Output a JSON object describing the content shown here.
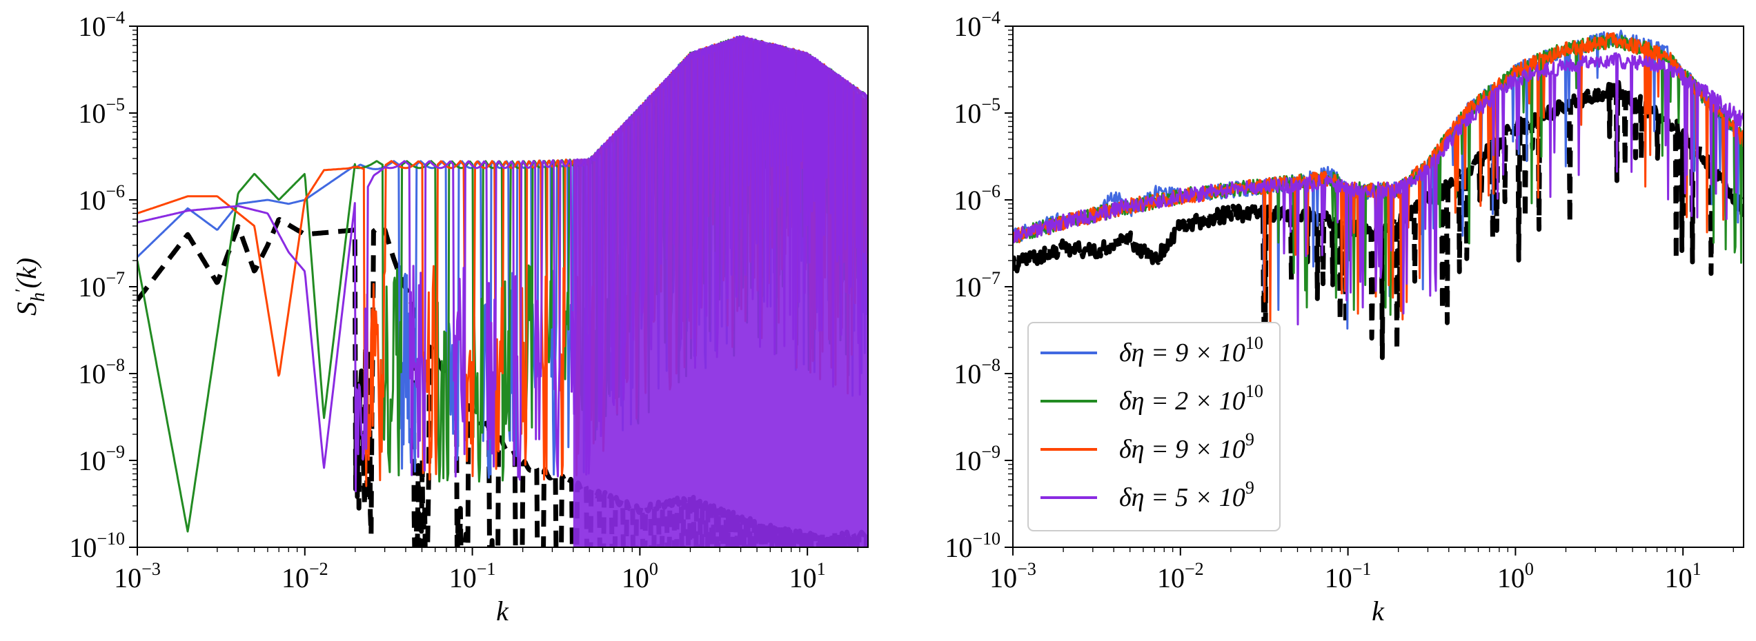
{
  "chart_data": [
    {
      "type": "line",
      "panel": "left",
      "title": "",
      "xlabel": "k",
      "ylabel": "S_h'(k)",
      "xscale": "log",
      "yscale": "log",
      "xlim": [
        0.001,
        23
      ],
      "ylim": [
        1e-10,
        0.0001
      ],
      "grid": false,
      "x_ticks": [
        {
          "value": 0.001,
          "base": "10",
          "exp": "−3"
        },
        {
          "value": 0.01,
          "base": "10",
          "exp": "−2"
        },
        {
          "value": 0.1,
          "base": "10",
          "exp": "−1"
        },
        {
          "value": 1,
          "base": "10",
          "exp": "0"
        },
        {
          "value": 10,
          "base": "10",
          "exp": "1"
        }
      ],
      "y_ticks": [
        {
          "value": 1e-10,
          "base": "10",
          "exp": "−10"
        },
        {
          "value": 1e-09,
          "base": "10",
          "exp": "−9"
        },
        {
          "value": 1e-08,
          "base": "10",
          "exp": "−8"
        },
        {
          "value": 1e-07,
          "base": "10",
          "exp": "−7"
        },
        {
          "value": 1e-06,
          "base": "10",
          "exp": "−6"
        },
        {
          "value": 1e-05,
          "base": "10",
          "exp": "−5"
        },
        {
          "value": 0.0001,
          "base": "10",
          "exp": "−4"
        }
      ],
      "series": [
        {
          "color": "#000000",
          "style": "dashed",
          "x": [
            0.001,
            0.002,
            0.003,
            0.004,
            0.005,
            0.006,
            0.007,
            0.01,
            0.02,
            0.03,
            0.05,
            0.1,
            0.2,
            0.5,
            1,
            2,
            5,
            10
          ],
          "y": [
            7e-08,
            4e-07,
            1.1e-07,
            5e-07,
            1.5e-07,
            3e-07,
            6e-07,
            4e-07,
            4.5e-07,
            5e-07,
            3e-08,
            4e-09,
            1e-09,
            5e-10,
            3e-10,
            4e-10,
            2e-10,
            1.5e-10
          ],
          "oscillation": "strong dips below 1e-9 beyond k≈0.03"
        },
        {
          "color": "#4169e1",
          "style": "solid",
          "x": [
            0.001,
            0.002,
            0.003,
            0.004,
            0.006,
            0.008,
            0.01,
            0.02,
            0.03,
            0.05,
            0.1,
            0.2,
            0.5,
            1,
            2,
            4,
            10,
            23
          ],
          "y": [
            2.2e-07,
            8e-07,
            4.5e-07,
            9e-07,
            1e-06,
            9e-07,
            1e-06,
            2.5e-06,
            2.8e-06,
            2.8e-06,
            2.8e-06,
            2.8e-06,
            3e-06,
            1.2e-05,
            5e-05,
            7.8e-05,
            5e-05,
            1.6e-05
          ],
          "oscillation": "deep dips to below 1e-10"
        },
        {
          "color": "#228b22",
          "style": "solid",
          "x": [
            0.001,
            0.002,
            0.004,
            0.005,
            0.007,
            0.01,
            0.013,
            0.02,
            0.03,
            0.05,
            0.1,
            0.2,
            0.5,
            1,
            2,
            4,
            10,
            23
          ],
          "y": [
            2e-07,
            1.5e-10,
            1.2e-06,
            2e-06,
            1e-06,
            2e-06,
            3e-09,
            2.8e-06,
            2.8e-06,
            2.8e-06,
            2.8e-06,
            2.8e-06,
            3e-06,
            1.2e-05,
            5e-05,
            7.8e-05,
            5e-05,
            1.6e-05
          ],
          "oscillation": "deep dips to below 1e-10"
        },
        {
          "color": "#ff4500",
          "style": "solid",
          "x": [
            0.001,
            0.002,
            0.003,
            0.005,
            0.007,
            0.01,
            0.013,
            0.018,
            0.03,
            0.05,
            0.1,
            0.2,
            0.5,
            1,
            2,
            4,
            10,
            23
          ],
          "y": [
            7e-07,
            1.1e-06,
            1.1e-06,
            5e-07,
            9e-09,
            1e-06,
            2.2e-06,
            2.3e-06,
            2.8e-06,
            2.8e-06,
            2.8e-06,
            2.8e-06,
            3e-06,
            1.2e-05,
            5e-05,
            7.8e-05,
            5e-05,
            1.6e-05
          ],
          "oscillation": "deep dips to below 1e-10"
        },
        {
          "color": "#8a2be2",
          "style": "solid",
          "x": [
            0.001,
            0.002,
            0.004,
            0.006,
            0.008,
            0.01,
            0.013,
            0.02,
            0.03,
            0.05,
            0.1,
            0.2,
            0.5,
            1,
            2,
            4,
            10,
            23
          ],
          "y": [
            5.5e-07,
            7.5e-07,
            8.5e-07,
            7e-07,
            2.5e-07,
            1.5e-07,
            8e-10,
            1e-06,
            2.8e-06,
            2.8e-06,
            2.8e-06,
            2.8e-06,
            3e-06,
            1.2e-05,
            5e-05,
            7.8e-05,
            5e-05,
            1.6e-05
          ],
          "oscillation": "deep dips to below 1e-10, dense fill above k≈0.3"
        }
      ]
    },
    {
      "type": "line",
      "panel": "right",
      "title": "",
      "xlabel": "k",
      "ylabel": "",
      "xscale": "log",
      "yscale": "log",
      "xlim": [
        0.001,
        23
      ],
      "ylim": [
        1e-10,
        0.0001
      ],
      "grid": false,
      "legend_placement": "lower-left",
      "x_ticks": [
        {
          "value": 0.001,
          "base": "10",
          "exp": "−3"
        },
        {
          "value": 0.01,
          "base": "10",
          "exp": "−2"
        },
        {
          "value": 0.1,
          "base": "10",
          "exp": "−1"
        },
        {
          "value": 1,
          "base": "10",
          "exp": "0"
        },
        {
          "value": 10,
          "base": "10",
          "exp": "1"
        }
      ],
      "y_ticks": [
        {
          "value": 1e-10,
          "base": "10",
          "exp": "−10"
        },
        {
          "value": 1e-09,
          "base": "10",
          "exp": "−9"
        },
        {
          "value": 1e-08,
          "base": "10",
          "exp": "−8"
        },
        {
          "value": 1e-07,
          "base": "10",
          "exp": "−7"
        },
        {
          "value": 1e-06,
          "base": "10",
          "exp": "−6"
        },
        {
          "value": 1e-05,
          "base": "10",
          "exp": "−5"
        },
        {
          "value": 0.0001,
          "base": "10",
          "exp": "−4"
        }
      ],
      "series": [
        {
          "color": "#000000",
          "style": "dashed",
          "x": [
            0.001,
            0.002,
            0.003,
            0.005,
            0.007,
            0.01,
            0.02,
            0.05,
            0.1,
            0.15,
            0.2,
            0.3,
            0.5,
            1,
            2,
            4,
            10,
            23
          ],
          "y": [
            1.8e-07,
            2.8e-07,
            2.5e-07,
            3.5e-07,
            2e-07,
            5e-07,
            7e-07,
            7e-07,
            5e-07,
            4e-07,
            6e-07,
            1e-06,
            2e-06,
            7e-06,
            1.2e-05,
            2e-05,
            6e-06,
            8e-07
          ]
        },
        {
          "name": "δη = 9×10^10",
          "color": "#4169e1",
          "style": "solid",
          "x": [
            0.001,
            0.002,
            0.003,
            0.004,
            0.005,
            0.007,
            0.01,
            0.02,
            0.05,
            0.08,
            0.1,
            0.2,
            0.3,
            0.5,
            1,
            2,
            4,
            8,
            15,
            23
          ],
          "y": [
            3.8e-07,
            6e-07,
            6e-07,
            1.2e-06,
            7.5e-07,
            1.2e-06,
            1.1e-06,
            1.3e-06,
            1.6e-06,
            2e-06,
            1.2e-06,
            1.3e-06,
            2.5e-06,
            1e-05,
            3e-05,
            5.5e-05,
            7.5e-05,
            5e-05,
            1.2e-05,
            5e-06
          ]
        },
        {
          "name": "δη = 2×10^10",
          "color": "#228b22",
          "style": "solid",
          "x": [
            0.001,
            0.002,
            0.005,
            0.01,
            0.02,
            0.05,
            0.08,
            0.1,
            0.2,
            0.3,
            0.5,
            1,
            2,
            4,
            8,
            15,
            23
          ],
          "y": [
            3.8e-07,
            5.5e-07,
            8.5e-07,
            1.1e-06,
            1.3e-06,
            1.6e-06,
            1.8e-06,
            1.3e-06,
            1.3e-06,
            2.5e-06,
            1e-05,
            3e-05,
            5.5e-05,
            7e-05,
            4.5e-05,
            1.2e-05,
            5e-06
          ]
        },
        {
          "name": "δη = 9×10^9",
          "color": "#ff4500",
          "style": "solid",
          "x": [
            0.001,
            0.002,
            0.005,
            0.01,
            0.02,
            0.05,
            0.08,
            0.1,
            0.2,
            0.3,
            0.5,
            1,
            2,
            4,
            8,
            15,
            23
          ],
          "y": [
            3.8e-07,
            5.5e-07,
            8.5e-07,
            1.1e-06,
            1.3e-06,
            1.6e-06,
            1.8e-06,
            1.3e-06,
            1.3e-06,
            2.5e-06,
            1e-05,
            3e-05,
            5.5e-05,
            7e-05,
            4.5e-05,
            1.2e-05,
            5e-06
          ]
        },
        {
          "name": "δη = 5×10^9",
          "color": "#8a2be2",
          "style": "solid",
          "x": [
            0.001,
            0.002,
            0.005,
            0.01,
            0.02,
            0.05,
            0.08,
            0.1,
            0.2,
            0.3,
            0.5,
            1,
            2,
            4,
            8,
            15,
            23
          ],
          "y": [
            3.8e-07,
            5.5e-07,
            8.5e-07,
            1.1e-06,
            1.3e-06,
            1.5e-06,
            1.6e-06,
            1.3e-06,
            1.3e-06,
            2.2e-06,
            8e-06,
            2.5e-05,
            3.5e-05,
            4e-05,
            3.5e-05,
            1.5e-05,
            8e-06
          ]
        }
      ]
    }
  ],
  "legend": {
    "entries": [
      {
        "prefix": "δη = 9 × 10",
        "exp": "10",
        "color": "#4169e1"
      },
      {
        "prefix": "δη = 2 × 10",
        "exp": "10",
        "color": "#228b22"
      },
      {
        "prefix": "δη = 9 × 10",
        "exp": "9",
        "color": "#ff4500"
      },
      {
        "prefix": "δη = 5 × 10",
        "exp": "9",
        "color": "#8a2be2"
      }
    ]
  },
  "axis_labels": {
    "x": "k",
    "y_main": "S",
    "y_sub": "h",
    "y_prime": "′",
    "y_arg": "(k)"
  }
}
